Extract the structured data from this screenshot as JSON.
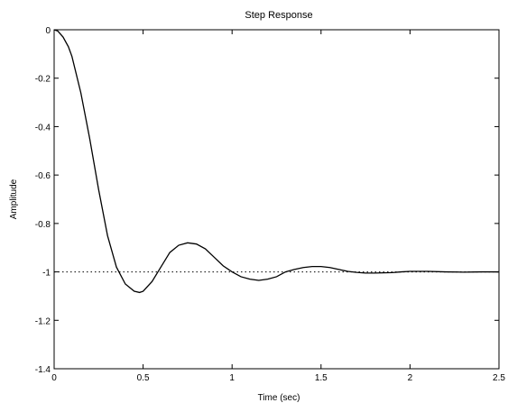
{
  "chart_data": {
    "type": "line",
    "title": "Step Response",
    "xlabel": "Time (sec)",
    "ylabel": "Amplitude",
    "xlim": [
      0,
      2.5
    ],
    "ylim": [
      -1.4,
      0
    ],
    "x_ticks": [
      0,
      0.5,
      1,
      1.5,
      2,
      2.5
    ],
    "x_tick_labels": [
      "0",
      "0.5",
      "1",
      "1.5",
      "2",
      "2.5"
    ],
    "y_ticks": [
      0,
      -0.2,
      -0.4,
      -0.6,
      -0.8,
      -1,
      -1.2,
      -1.4
    ],
    "y_tick_labels": [
      "0",
      "-0.2",
      "-0.4",
      "-0.6",
      "-0.8",
      "-1",
      "-1.2",
      "-1.4"
    ],
    "grid": false,
    "reference_line": {
      "y": -1,
      "style": "dotted"
    },
    "series": [
      {
        "color": "#000000",
        "x": [
          0,
          0.02,
          0.05,
          0.08,
          0.1,
          0.15,
          0.2,
          0.25,
          0.3,
          0.35,
          0.4,
          0.45,
          0.48,
          0.5,
          0.55,
          0.6,
          0.65,
          0.7,
          0.75,
          0.8,
          0.85,
          0.9,
          0.95,
          1.0,
          1.05,
          1.1,
          1.15,
          1.2,
          1.25,
          1.3,
          1.35,
          1.4,
          1.45,
          1.5,
          1.55,
          1.6,
          1.65,
          1.7,
          1.75,
          1.8,
          1.85,
          1.9,
          1.95,
          2.0,
          2.1,
          2.2,
          2.3,
          2.4,
          2.5
        ],
        "y": [
          0,
          -0.005,
          -0.03,
          -0.07,
          -0.11,
          -0.26,
          -0.45,
          -0.66,
          -0.85,
          -0.98,
          -1.05,
          -1.08,
          -1.085,
          -1.08,
          -1.04,
          -0.98,
          -0.92,
          -0.89,
          -0.88,
          -0.885,
          -0.905,
          -0.94,
          -0.975,
          -1.0,
          -1.02,
          -1.03,
          -1.035,
          -1.03,
          -1.02,
          -1.0,
          -0.99,
          -0.982,
          -0.978,
          -0.978,
          -0.982,
          -0.99,
          -0.998,
          -1.002,
          -1.005,
          -1.005,
          -1.004,
          -1.003,
          -1.0,
          -0.998,
          -0.998,
          -1.0,
          -1.001,
          -1.0,
          -1.0
        ]
      }
    ]
  }
}
